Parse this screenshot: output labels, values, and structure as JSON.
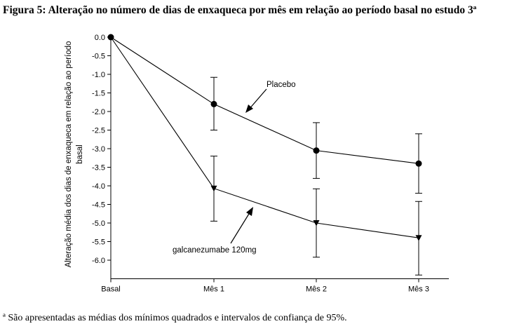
{
  "figure": {
    "title": "Figura 5: Alteração no número de dias de enxaqueca por mês em relação ao período basal no estudo 3ª",
    "footnote": "ª São apresentadas as médias dos mínimos quadrados e intervalos de confiança de 95%."
  },
  "chart_data": {
    "type": "line",
    "categories": [
      "Basal",
      "Mês 1",
      "Mês 2",
      "Mês 3"
    ],
    "ylabel_line1": "Alteração média dos dias de enxaqueca  em relação ao período",
    "ylabel_line2": "basal",
    "ylim": [
      -6.5,
      0.0
    ],
    "yticks": [
      0.0,
      -0.5,
      -1.0,
      -1.5,
      -2.0,
      -2.5,
      -3.0,
      -3.5,
      -4.0,
      -4.5,
      -5.0,
      -5.5,
      -6.0
    ],
    "ytick_labels": [
      "0.0",
      "-0.5",
      "-1.0",
      "-1.5",
      "-2.0",
      "-2.5",
      "-3.0",
      "-3.5",
      "-4.0",
      "-4.5",
      "-5.0",
      "-5.5",
      "-6.0"
    ],
    "grid": false,
    "series": [
      {
        "name": "Placebo",
        "marker": "circle",
        "values": [
          0.0,
          -1.8,
          -3.05,
          -3.4
        ],
        "ci_lower": [
          0.0,
          -2.5,
          -3.8,
          -4.2
        ],
        "ci_upper": [
          0.0,
          -1.08,
          -2.3,
          -2.6
        ]
      },
      {
        "name": "galcanezumabe  120mg",
        "marker": "triangle-down",
        "values": [
          0.0,
          -4.07,
          -5.0,
          -5.4
        ],
        "ci_lower": [
          0.0,
          -4.95,
          -5.92,
          -6.4
        ],
        "ci_upper": [
          0.0,
          -3.2,
          -4.08,
          -4.42
        ]
      }
    ]
  }
}
